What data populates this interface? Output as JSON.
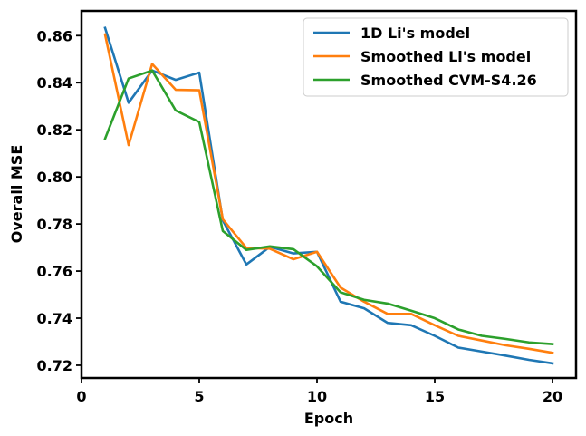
{
  "chart_data": {
    "type": "line",
    "title": "",
    "xlabel": "Epoch",
    "ylabel": "Overall MSE",
    "xlim": [
      0,
      21
    ],
    "ylim": [
      0.7146,
      0.8705
    ],
    "xticks": [
      0,
      5,
      10,
      15,
      20
    ],
    "yticks": [
      0.72,
      0.74,
      0.76,
      0.78,
      0.8,
      0.82,
      0.84,
      0.86
    ],
    "grid": false,
    "legend_position": "top-right",
    "x": [
      1,
      2,
      3,
      4,
      5,
      6,
      7,
      8,
      9,
      10,
      11,
      12,
      13,
      14,
      15,
      16,
      17,
      18,
      19,
      20
    ],
    "series": [
      {
        "name": "1D Li's model",
        "color": "#1f77b4",
        "values": [
          0.8633,
          0.8315,
          0.8452,
          0.8412,
          0.8443,
          0.7815,
          0.7628,
          0.7703,
          0.7675,
          0.7682,
          0.747,
          0.7442,
          0.738,
          0.737,
          0.7325,
          0.7275,
          0.7258,
          0.7241,
          0.7223,
          0.7208
        ]
      },
      {
        "name": "Smoothed Li's model",
        "color": "#ff7f0e",
        "values": [
          0.8605,
          0.8135,
          0.848,
          0.837,
          0.8368,
          0.782,
          0.7698,
          0.7695,
          0.765,
          0.7682,
          0.753,
          0.747,
          0.7418,
          0.7418,
          0.737,
          0.7325,
          0.7305,
          0.7285,
          0.727,
          0.7253
        ]
      },
      {
        "name": "Smoothed CVM-S4.26",
        "color": "#2ca02c",
        "values": [
          0.8162,
          0.8418,
          0.8452,
          0.8282,
          0.8233,
          0.777,
          0.769,
          0.7705,
          0.7693,
          0.762,
          0.751,
          0.7478,
          0.7462,
          0.7432,
          0.74,
          0.7352,
          0.7325,
          0.7312,
          0.7297,
          0.729
        ]
      }
    ]
  }
}
